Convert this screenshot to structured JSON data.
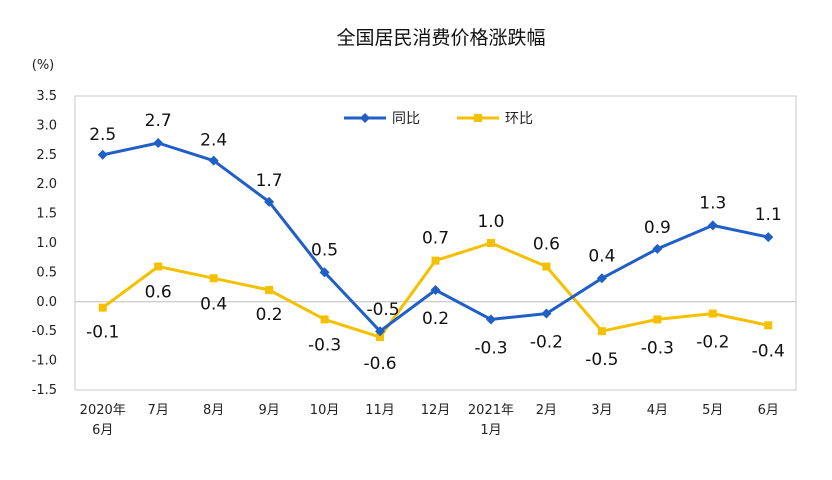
{
  "chart_data": {
    "type": "line",
    "title": "全国居民消费价格涨跌幅",
    "unit": "(%)",
    "categories": [
      [
        "2020年",
        "6月"
      ],
      [
        "7月"
      ],
      [
        "8月"
      ],
      [
        "9月"
      ],
      [
        "10月"
      ],
      [
        "11月"
      ],
      [
        "12月"
      ],
      [
        "2021年",
        "1月"
      ],
      [
        "2月"
      ],
      [
        "3月"
      ],
      [
        "4月"
      ],
      [
        "5月"
      ],
      [
        "6月"
      ]
    ],
    "ylim": [
      -1.5,
      3.5
    ],
    "yticks": [
      "3.5",
      "3.0",
      "2.5",
      "2.0",
      "1.5",
      "1.0",
      "0.5",
      "0.0",
      "-0.5",
      "-1.0",
      "-1.5"
    ],
    "legend_position": "top-center",
    "series": [
      {
        "name": "同比",
        "color": "#1f5fc6",
        "marker": "diamond",
        "values": [
          2.5,
          2.7,
          2.4,
          1.7,
          0.5,
          -0.5,
          0.2,
          -0.3,
          -0.2,
          0.4,
          0.9,
          1.3,
          1.1
        ],
        "labels": [
          "2.5",
          "2.7",
          "2.4",
          "1.7",
          "0.5",
          "-0.5",
          "0.2",
          "-0.3",
          "-0.2",
          "0.4",
          "0.9",
          "1.3",
          "1.1"
        ]
      },
      {
        "name": "环比",
        "color": "#f5c000",
        "marker": "square",
        "values": [
          -0.1,
          0.6,
          0.4,
          0.2,
          -0.3,
          -0.6,
          0.7,
          1.0,
          0.6,
          -0.5,
          -0.3,
          -0.2,
          -0.4
        ],
        "labels": [
          "-0.1",
          "0.6",
          "0.4",
          "0.2",
          "-0.3",
          "-0.6",
          "0.7",
          "1.0",
          "0.6",
          "-0.5",
          "-0.3",
          "-0.2",
          "-0.4"
        ]
      }
    ]
  }
}
